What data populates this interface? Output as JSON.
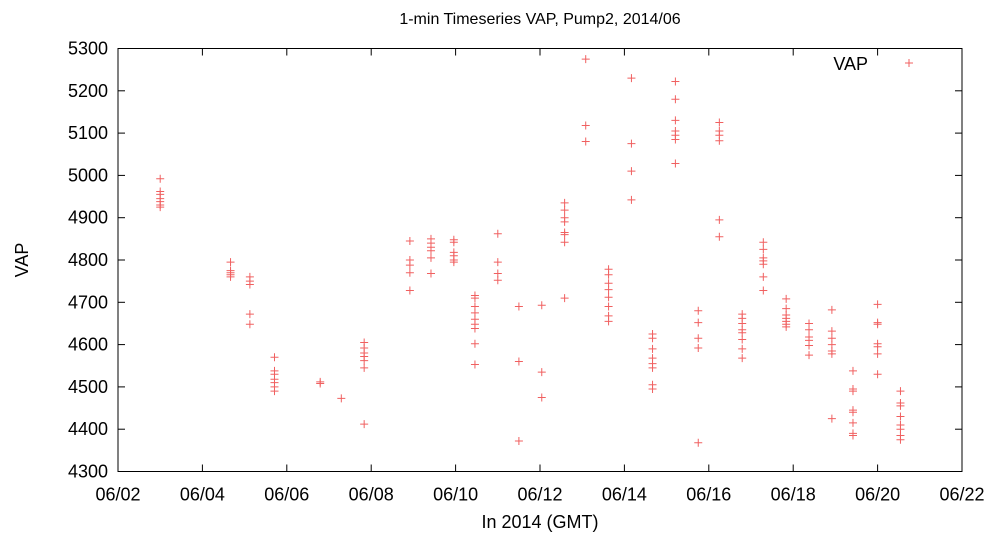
{
  "chart_data": {
    "type": "scatter",
    "title": "1-min Timeseries VAP, Pump2, 2014/06",
    "xlabel": "In 2014 (GMT)",
    "ylabel": "VAP",
    "xlim": [
      "06/02",
      "06/22"
    ],
    "ylim": [
      4300,
      5300
    ],
    "x_ticks": [
      "06/02",
      "06/04",
      "06/06",
      "06/08",
      "06/10",
      "06/12",
      "06/14",
      "06/16",
      "06/18",
      "06/20",
      "06/22"
    ],
    "y_ticks": [
      4300,
      4400,
      4500,
      4600,
      4700,
      4800,
      4900,
      5000,
      5100,
      5200,
      5300
    ],
    "grid": false,
    "legend": "top-right",
    "marker_color": "#f06060",
    "series": [
      {
        "name": "VAP",
        "points": [
          [
            "06/03 00:00",
            4992
          ],
          [
            "06/03 00:00",
            4962
          ],
          [
            "06/03 00:00",
            4955
          ],
          [
            "06/03 00:00",
            4945
          ],
          [
            "06/03 00:00",
            4938
          ],
          [
            "06/03 00:00",
            4930
          ],
          [
            "06/03 00:00",
            4925
          ],
          [
            "06/04 16:00",
            4795
          ],
          [
            "06/04 16:00",
            4775
          ],
          [
            "06/04 16:00",
            4770
          ],
          [
            "06/04 16:00",
            4765
          ],
          [
            "06/04 16:00",
            4760
          ],
          [
            "06/05 03:00",
            4760
          ],
          [
            "06/05 03:00",
            4750
          ],
          [
            "06/05 03:00",
            4742
          ],
          [
            "06/05 03:00",
            4672
          ],
          [
            "06/05 03:00",
            4648
          ],
          [
            "06/05 17:00",
            4570
          ],
          [
            "06/05 17:00",
            4538
          ],
          [
            "06/05 17:00",
            4530
          ],
          [
            "06/05 17:00",
            4518
          ],
          [
            "06/05 17:00",
            4510
          ],
          [
            "06/05 17:00",
            4500
          ],
          [
            "06/05 17:00",
            4490
          ],
          [
            "06/06 19:00",
            4512
          ],
          [
            "06/06 19:00",
            4508
          ],
          [
            "06/07 07:00",
            4473
          ],
          [
            "06/07 20:00",
            4605
          ],
          [
            "06/07 20:00",
            4592
          ],
          [
            "06/07 20:00",
            4580
          ],
          [
            "06/07 20:00",
            4572
          ],
          [
            "06/07 20:00",
            4562
          ],
          [
            "06/07 20:00",
            4545
          ],
          [
            "06/07 20:00",
            4412
          ],
          [
            "06/08 22:00",
            4845
          ],
          [
            "06/08 22:00",
            4800
          ],
          [
            "06/08 22:00",
            4788
          ],
          [
            "06/08 22:00",
            4770
          ],
          [
            "06/08 22:00",
            4728
          ],
          [
            "06/09 10:00",
            4850
          ],
          [
            "06/09 10:00",
            4840
          ],
          [
            "06/09 10:00",
            4830
          ],
          [
            "06/09 10:00",
            4822
          ],
          [
            "06/09 10:00",
            4805
          ],
          [
            "06/09 10:00",
            4768
          ],
          [
            "06/09 23:00",
            4848
          ],
          [
            "06/09 23:00",
            4842
          ],
          [
            "06/09 23:00",
            4818
          ],
          [
            "06/09 23:00",
            4810
          ],
          [
            "06/09 23:00",
            4800
          ],
          [
            "06/09 23:00",
            4795
          ],
          [
            "06/10 11:00",
            4716
          ],
          [
            "06/10 11:00",
            4710
          ],
          [
            "06/10 11:00",
            4690
          ],
          [
            "06/10 11:00",
            4675
          ],
          [
            "06/10 11:00",
            4660
          ],
          [
            "06/10 11:00",
            4648
          ],
          [
            "06/10 11:00",
            4638
          ],
          [
            "06/10 11:00",
            4602
          ],
          [
            "06/10 11:00",
            4553
          ],
          [
            "06/11 00:00",
            4862
          ],
          [
            "06/11 00:00",
            4795
          ],
          [
            "06/11 00:00",
            4768
          ],
          [
            "06/11 00:00",
            4752
          ],
          [
            "06/11 12:00",
            4690
          ],
          [
            "06/11 12:00",
            4560
          ],
          [
            "06/11 12:00",
            4372
          ],
          [
            "06/12 01:00",
            4693
          ],
          [
            "06/12 01:00",
            4535
          ],
          [
            "06/12 01:00",
            4475
          ],
          [
            "06/12 14:00",
            4935
          ],
          [
            "06/12 14:00",
            4918
          ],
          [
            "06/12 14:00",
            4900
          ],
          [
            "06/12 14:00",
            4890
          ],
          [
            "06/12 14:00",
            4865
          ],
          [
            "06/12 14:00",
            4860
          ],
          [
            "06/12 14:00",
            4842
          ],
          [
            "06/12 14:00",
            4710
          ],
          [
            "06/13 02:00",
            5275
          ],
          [
            "06/13 02:00",
            5118
          ],
          [
            "06/13 02:00",
            5080
          ],
          [
            "06/13 15:00",
            4778
          ],
          [
            "06/13 15:00",
            4765
          ],
          [
            "06/13 15:00",
            4745
          ],
          [
            "06/13 15:00",
            4730
          ],
          [
            "06/13 15:00",
            4712
          ],
          [
            "06/13 15:00",
            4690
          ],
          [
            "06/13 15:00",
            4668
          ],
          [
            "06/13 15:00",
            4655
          ],
          [
            "06/14 04:00",
            5230
          ],
          [
            "06/14 04:00",
            5075
          ],
          [
            "06/14 04:00",
            5010
          ],
          [
            "06/14 04:00",
            4942
          ],
          [
            "06/14 16:00",
            4625
          ],
          [
            "06/14 16:00",
            4615
          ],
          [
            "06/14 16:00",
            4590
          ],
          [
            "06/14 16:00",
            4568
          ],
          [
            "06/14 16:00",
            4555
          ],
          [
            "06/14 16:00",
            4545
          ],
          [
            "06/14 16:00",
            4505
          ],
          [
            "06/14 16:00",
            4495
          ],
          [
            "06/15 05:00",
            5222
          ],
          [
            "06/15 05:00",
            5180
          ],
          [
            "06/15 05:00",
            5130
          ],
          [
            "06/15 05:00",
            5105
          ],
          [
            "06/15 05:00",
            5095
          ],
          [
            "06/15 05:00",
            5085
          ],
          [
            "06/15 05:00",
            5028
          ],
          [
            "06/15 18:00",
            4680
          ],
          [
            "06/15 18:00",
            4652
          ],
          [
            "06/15 18:00",
            4615
          ],
          [
            "06/15 18:00",
            4592
          ],
          [
            "06/15 18:00",
            4368
          ],
          [
            "06/16 06:00",
            5125
          ],
          [
            "06/16 06:00",
            5105
          ],
          [
            "06/16 06:00",
            5095
          ],
          [
            "06/16 06:00",
            5082
          ],
          [
            "06/16 06:00",
            4895
          ],
          [
            "06/16 06:00",
            4855
          ],
          [
            "06/16 19:00",
            4672
          ],
          [
            "06/16 19:00",
            4662
          ],
          [
            "06/16 19:00",
            4650
          ],
          [
            "06/16 19:00",
            4635
          ],
          [
            "06/16 19:00",
            4628
          ],
          [
            "06/16 19:00",
            4612
          ],
          [
            "06/16 19:00",
            4590
          ],
          [
            "06/16 19:00",
            4568
          ],
          [
            "06/17 07:00",
            4842
          ],
          [
            "06/17 07:00",
            4825
          ],
          [
            "06/17 07:00",
            4805
          ],
          [
            "06/17 07:00",
            4798
          ],
          [
            "06/17 07:00",
            4790
          ],
          [
            "06/17 07:00",
            4760
          ],
          [
            "06/17 07:00",
            4728
          ],
          [
            "06/17 20:00",
            4708
          ],
          [
            "06/17 20:00",
            4685
          ],
          [
            "06/17 20:00",
            4670
          ],
          [
            "06/17 20:00",
            4662
          ],
          [
            "06/17 20:00",
            4655
          ],
          [
            "06/17 20:00",
            4648
          ],
          [
            "06/17 20:00",
            4642
          ],
          [
            "06/18 09:00",
            4650
          ],
          [
            "06/18 09:00",
            4635
          ],
          [
            "06/18 09:00",
            4618
          ],
          [
            "06/18 09:00",
            4610
          ],
          [
            "06/18 09:00",
            4598
          ],
          [
            "06/18 09:00",
            4575
          ],
          [
            "06/18 22:00",
            4682
          ],
          [
            "06/18 22:00",
            4632
          ],
          [
            "06/18 22:00",
            4615
          ],
          [
            "06/18 22:00",
            4600
          ],
          [
            "06/18 22:00",
            4585
          ],
          [
            "06/18 22:00",
            4578
          ],
          [
            "06/18 22:00",
            4425
          ],
          [
            "06/19 10:00",
            4538
          ],
          [
            "06/19 10:00",
            4495
          ],
          [
            "06/19 10:00",
            4490
          ],
          [
            "06/19 10:00",
            4445
          ],
          [
            "06/19 10:00",
            4440
          ],
          [
            "06/19 10:00",
            4415
          ],
          [
            "06/19 10:00",
            4390
          ],
          [
            "06/19 10:00",
            4385
          ],
          [
            "06/20 00:00",
            4695
          ],
          [
            "06/20 00:00",
            4652
          ],
          [
            "06/20 00:00",
            4648
          ],
          [
            "06/20 00:00",
            4602
          ],
          [
            "06/20 00:00",
            4595
          ],
          [
            "06/20 00:00",
            4578
          ],
          [
            "06/20 00:00",
            4530
          ],
          [
            "06/20 13:00",
            4490
          ],
          [
            "06/20 13:00",
            4462
          ],
          [
            "06/20 13:00",
            4455
          ],
          [
            "06/20 13:00",
            4430
          ],
          [
            "06/20 13:00",
            4410
          ],
          [
            "06/20 13:00",
            4400
          ],
          [
            "06/20 13:00",
            4385
          ],
          [
            "06/20 13:00",
            4375
          ]
        ]
      }
    ]
  }
}
